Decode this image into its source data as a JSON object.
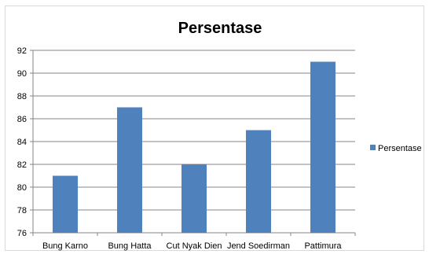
{
  "chart_data": {
    "type": "bar",
    "title": "Persentase",
    "xlabel": "",
    "ylabel": "",
    "categories": [
      "Bung Karno",
      "Bung Hatta",
      "Cut Nyak Dien",
      "Jend Soedirman",
      "Pattimura"
    ],
    "series": [
      {
        "name": "Persentase",
        "values": [
          81,
          87,
          82,
          85,
          91
        ],
        "color": "#4f81bd"
      }
    ],
    "ylim": [
      76,
      92
    ],
    "yticks": [
      76,
      78,
      80,
      82,
      84,
      86,
      88,
      90,
      92
    ],
    "grid": true,
    "legend_position": "right"
  }
}
